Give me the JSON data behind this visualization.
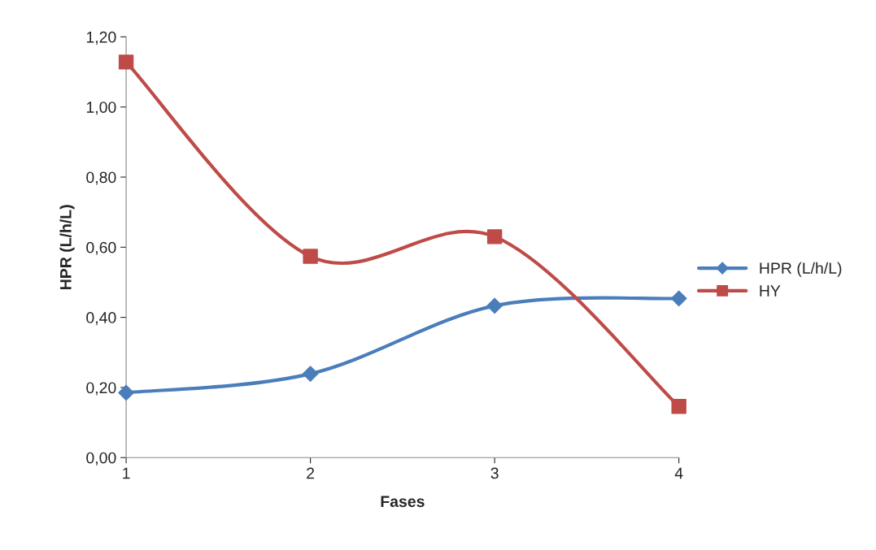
{
  "chart_data": {
    "type": "line",
    "xlabel": "Fases",
    "ylabel": "HPR (L/h/L)",
    "categories": [
      "1",
      "2",
      "3",
      "4"
    ],
    "series": [
      {
        "name": "HPR (L/h/L)",
        "color": "#4a7ebb",
        "values": [
          0.185,
          0.239,
          0.433,
          0.454
        ],
        "marker": "diamond"
      },
      {
        "name": "HY",
        "color": "#be4b48",
        "values": [
          1.128,
          0.574,
          0.63,
          0.146
        ],
        "marker": "square"
      }
    ],
    "ylim": [
      0,
      1.2
    ],
    "yticks": [
      {
        "value": 0,
        "label": "0,00"
      },
      {
        "value": 0.2,
        "label": "0,20"
      },
      {
        "value": 0.4,
        "label": "0,40"
      },
      {
        "value": 0.6,
        "label": "0,60"
      },
      {
        "value": 0.8,
        "label": "0,80"
      },
      {
        "value": 1.0,
        "label": "1,00"
      },
      {
        "value": 1.2,
        "label": "1,20"
      }
    ],
    "grid": false,
    "legend": "right",
    "line_style": "solid"
  }
}
